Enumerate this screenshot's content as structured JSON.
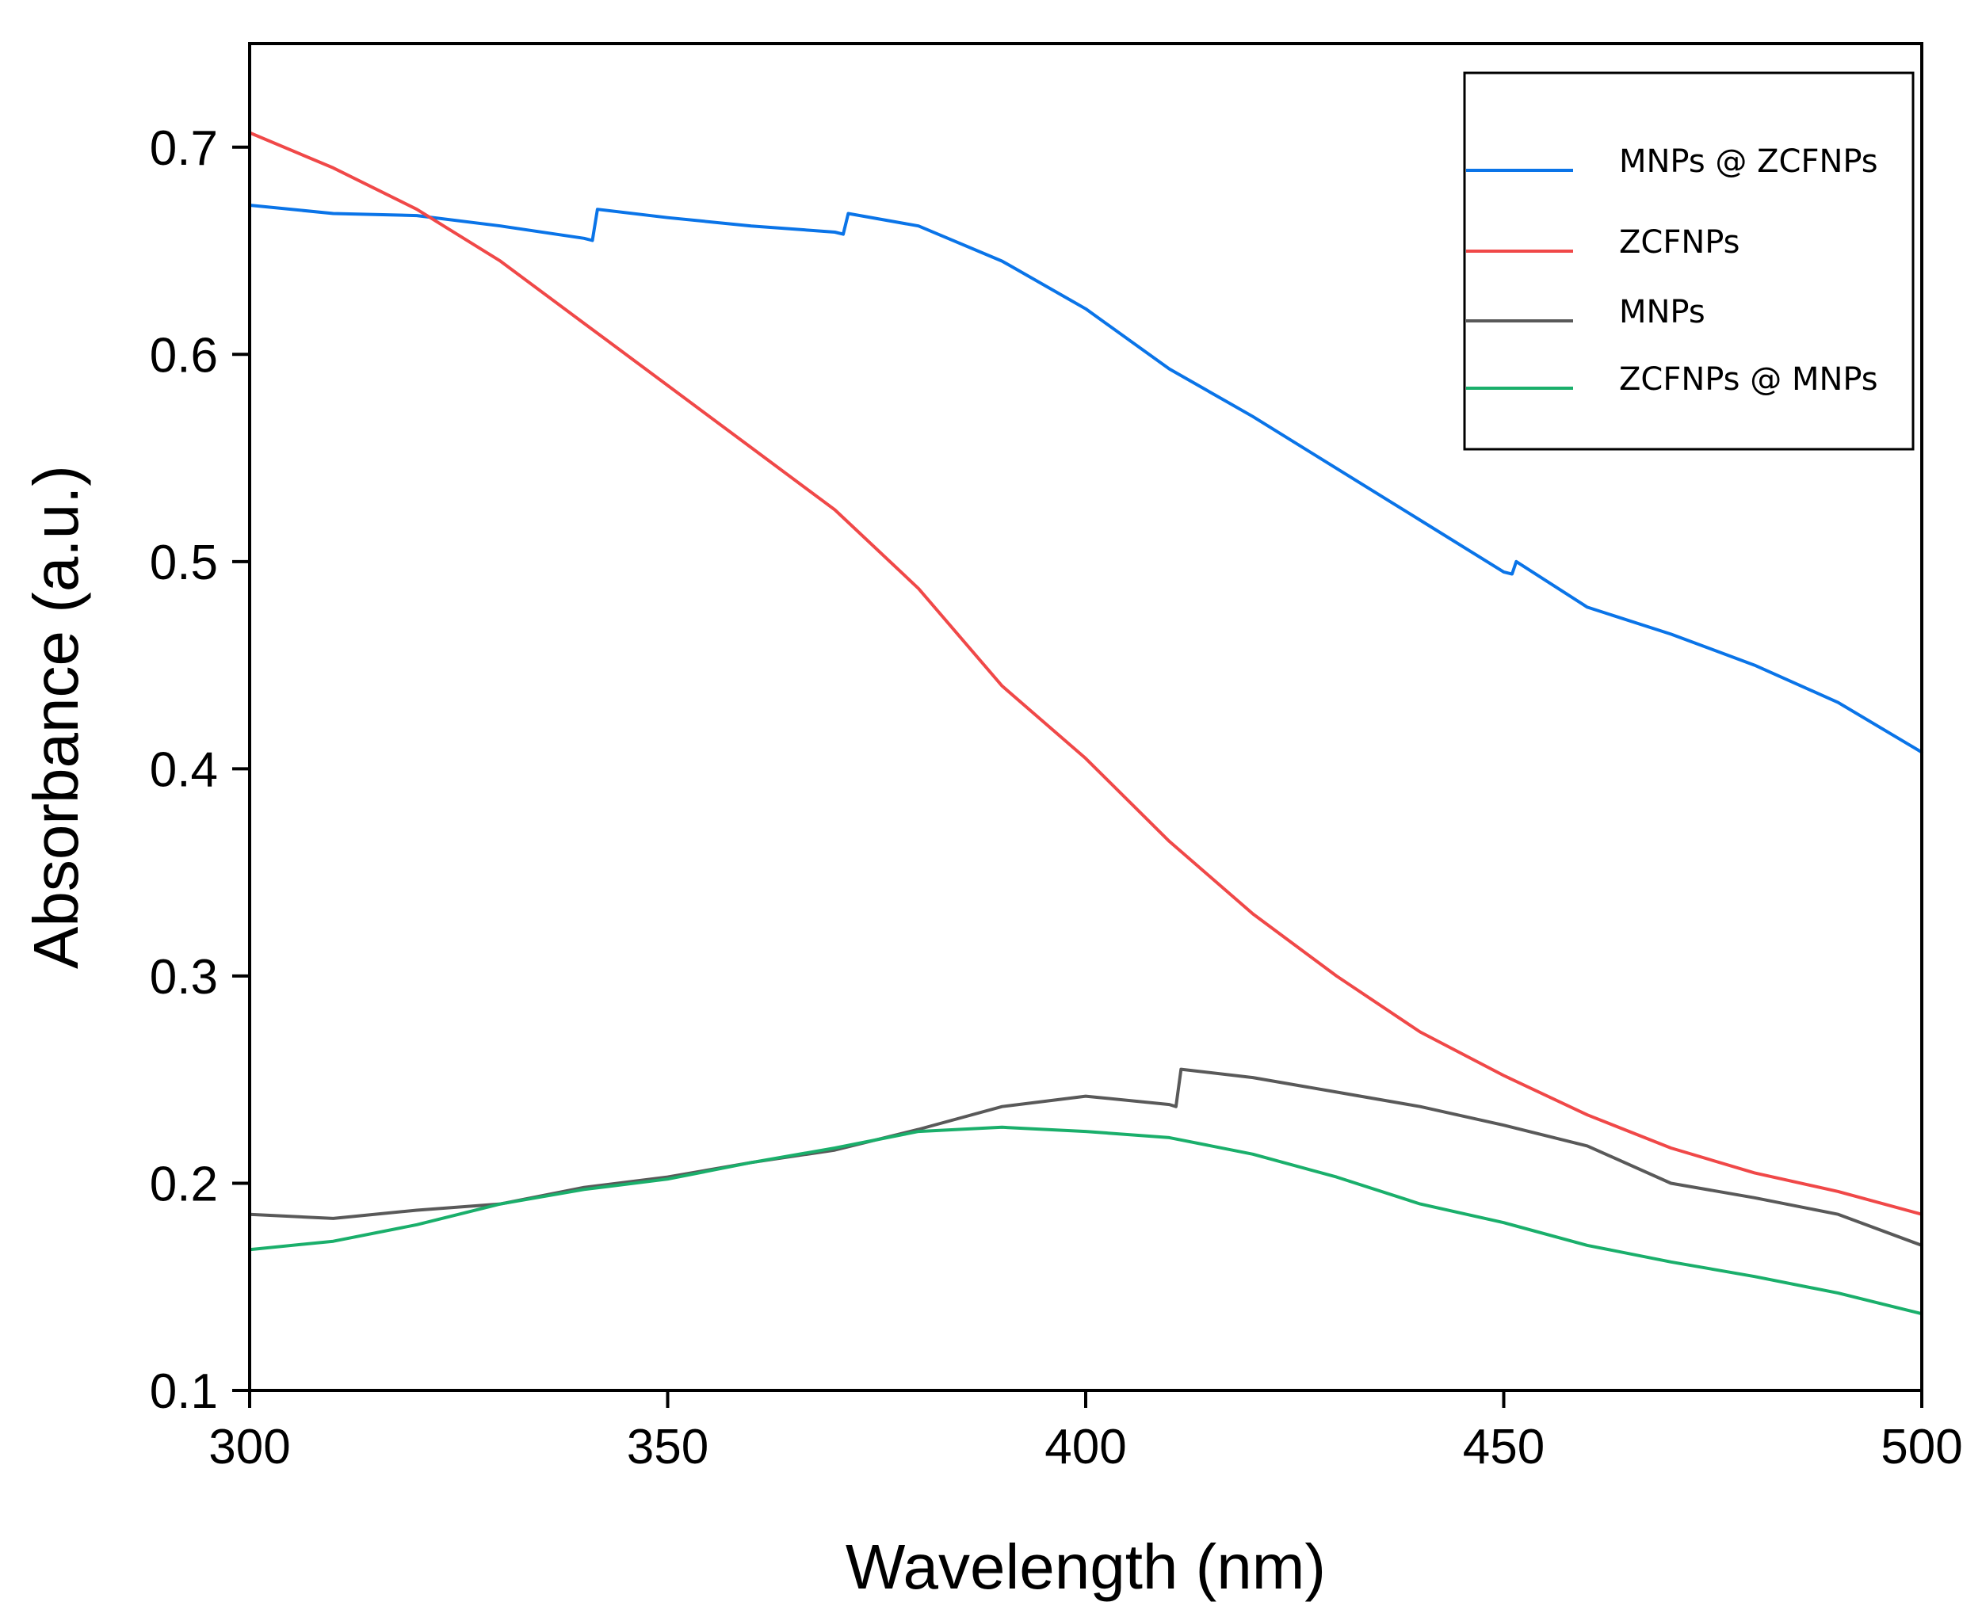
{
  "chart_data": {
    "type": "line",
    "title": "",
    "xlabel": "Wavelength (nm)",
    "ylabel": "Absorbance (a.u.)",
    "xlim": [
      300,
      500
    ],
    "ylim": [
      0.1,
      0.75
    ],
    "xticks": [
      300,
      350,
      400,
      450,
      500
    ],
    "xtick_labels": [
      "300",
      "350",
      "400",
      "450",
      "500"
    ],
    "yticks": [
      0.1,
      0.2,
      0.3,
      0.4,
      0.5,
      0.6,
      0.7
    ],
    "ytick_labels": [
      "0.1",
      "0.2",
      "0.3",
      "0.4",
      "0.5",
      "0.6",
      "0.7"
    ],
    "grid": false,
    "legend_position": "top-right",
    "series": [
      {
        "name": "MNPs @ ZCFNPs",
        "color": "#0a74e8",
        "x": [
          300,
          310,
          320,
          330,
          340,
          341,
          341.6,
          350,
          360,
          370,
          371,
          371.6,
          380,
          390,
          400,
          410,
          420,
          430,
          440,
          450,
          451,
          451.5,
          460,
          470,
          480,
          490,
          500
        ],
        "y": [
          0.672,
          0.668,
          0.667,
          0.662,
          0.656,
          0.655,
          0.67,
          0.666,
          0.662,
          0.659,
          0.658,
          0.668,
          0.662,
          0.645,
          0.622,
          0.593,
          0.57,
          0.545,
          0.52,
          0.495,
          0.494,
          0.5,
          0.478,
          0.465,
          0.45,
          0.432,
          0.408
        ]
      },
      {
        "name": "ZCFNPs",
        "color": "#f04848",
        "x": [
          300,
          310,
          320,
          330,
          340,
          350,
          360,
          370,
          380,
          390,
          400,
          410,
          420,
          430,
          440,
          450,
          460,
          470,
          480,
          490,
          500
        ],
        "y": [
          0.707,
          0.69,
          0.67,
          0.645,
          0.615,
          0.585,
          0.555,
          0.525,
          0.487,
          0.44,
          0.405,
          0.365,
          0.33,
          0.3,
          0.273,
          0.252,
          0.233,
          0.217,
          0.205,
          0.196,
          0.185
        ]
      },
      {
        "name": "MNPs",
        "color": "#595959",
        "x": [
          300,
          310,
          320,
          330,
          340,
          350,
          360,
          370,
          380,
          390,
          400,
          410,
          410.8,
          411.4,
          420,
          430,
          440,
          450,
          460,
          470,
          480,
          490,
          500
        ],
        "y": [
          0.185,
          0.183,
          0.187,
          0.19,
          0.198,
          0.203,
          0.21,
          0.216,
          0.226,
          0.237,
          0.242,
          0.238,
          0.237,
          0.255,
          0.251,
          0.244,
          0.237,
          0.228,
          0.218,
          0.2,
          0.193,
          0.185,
          0.17
        ]
      },
      {
        "name": "ZCFNPs @ MNPs",
        "color": "#1aaf6b",
        "x": [
          300,
          310,
          320,
          330,
          340,
          350,
          360,
          370,
          380,
          390,
          400,
          410,
          420,
          430,
          440,
          450,
          460,
          470,
          480,
          490,
          500
        ],
        "y": [
          0.168,
          0.172,
          0.18,
          0.19,
          0.197,
          0.202,
          0.21,
          0.217,
          0.225,
          0.227,
          0.225,
          0.222,
          0.214,
          0.203,
          0.19,
          0.181,
          0.17,
          0.162,
          0.155,
          0.147,
          0.137
        ]
      }
    ]
  }
}
